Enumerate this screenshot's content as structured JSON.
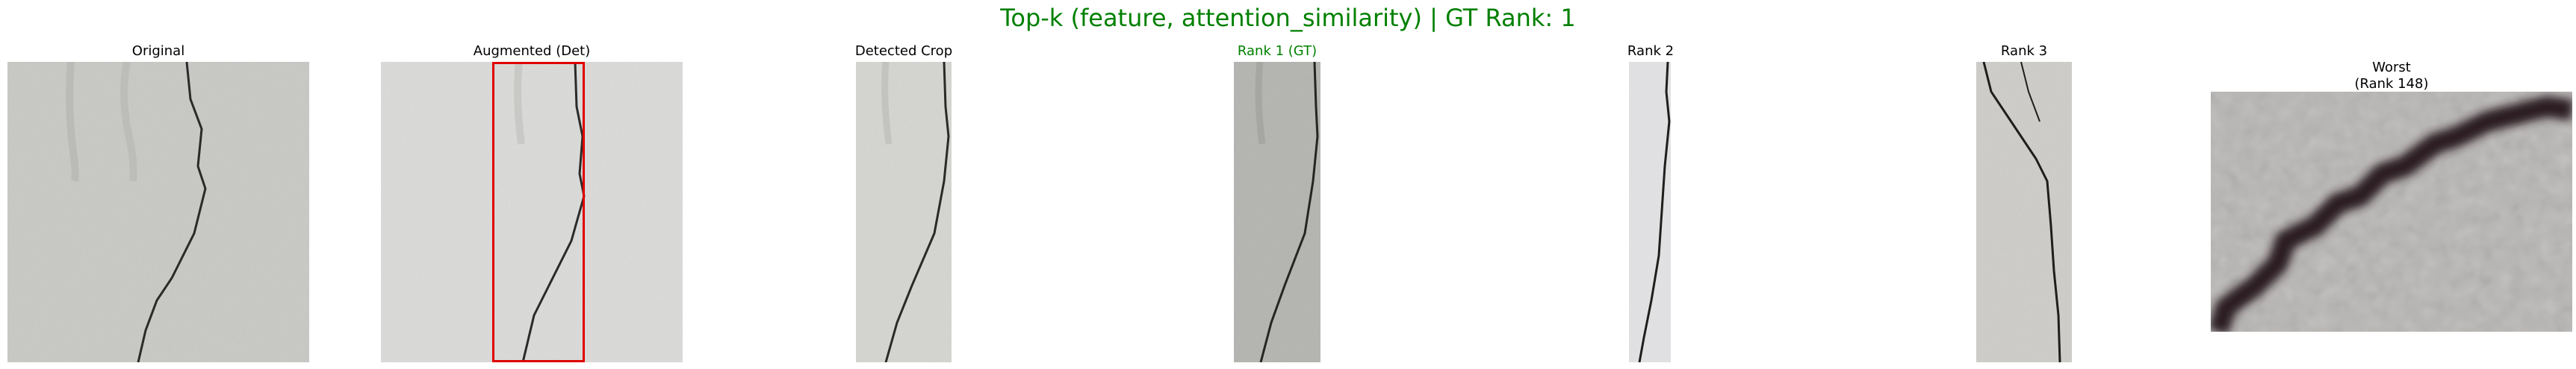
{
  "figure": {
    "title": "Top-k (feature, attention_similarity) | GT Rank: 1",
    "title_color": "#008000"
  },
  "panels": [
    {
      "id": "original",
      "title": "Original"
    },
    {
      "id": "augmented",
      "title": "Augmented (Det)",
      "box_color": "#e00000"
    },
    {
      "id": "detected",
      "title": "Detected Crop"
    },
    {
      "id": "rank1",
      "title": "Rank 1 (GT)",
      "title_color": "#008000"
    },
    {
      "id": "rank2",
      "title": "Rank 2"
    },
    {
      "id": "rank3",
      "title": "Rank 3"
    },
    {
      "id": "worst",
      "title": "Worst\n(Rank 148)"
    }
  ]
}
